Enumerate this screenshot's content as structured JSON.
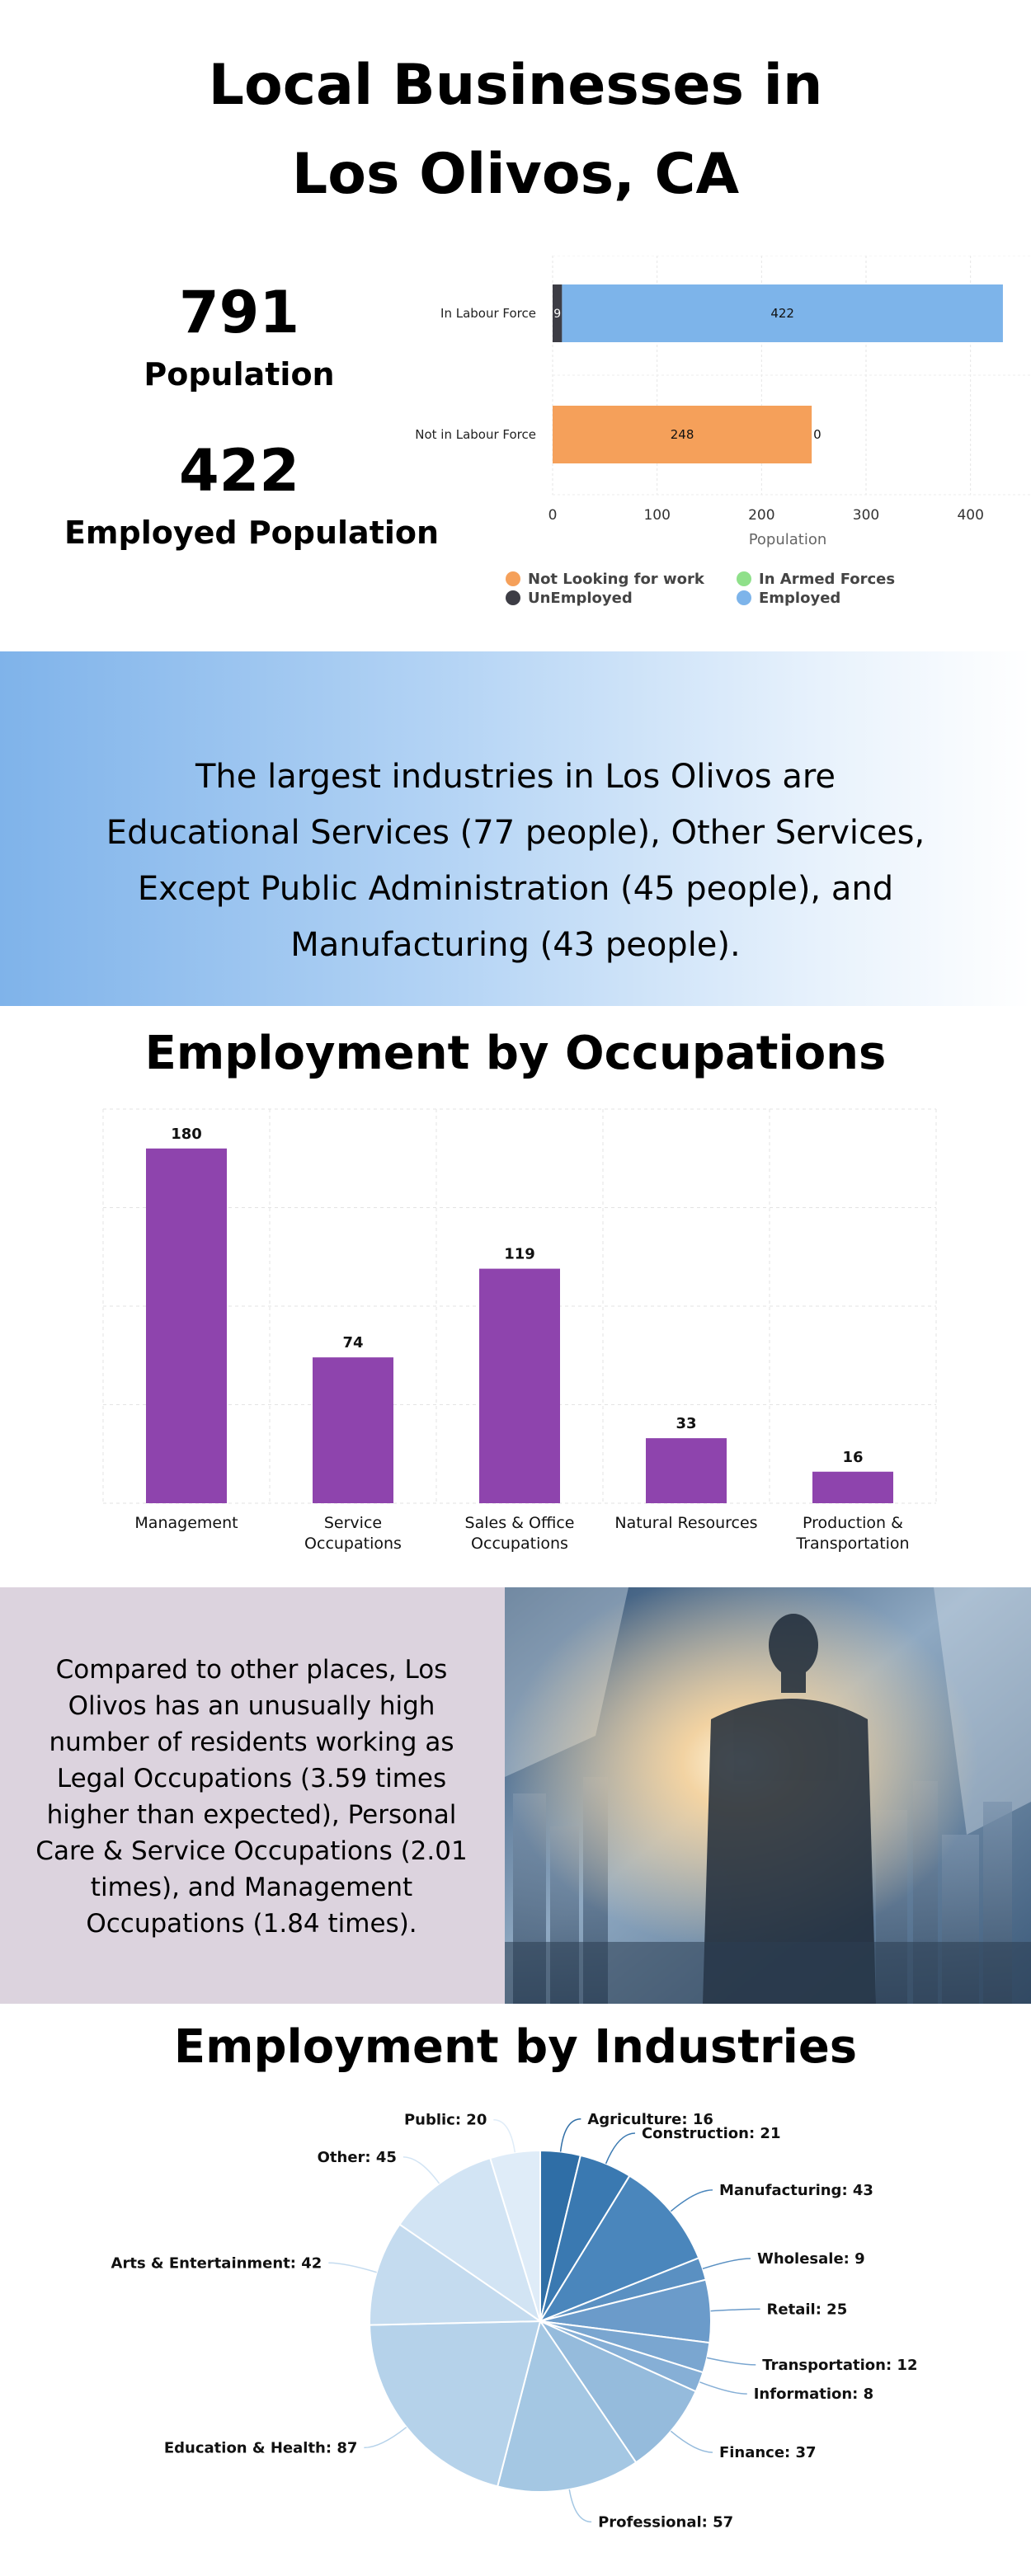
{
  "header": {
    "title_line1": "Local Businesses in",
    "title_line2": "Los Olivos, CA"
  },
  "stats": {
    "population_value": "791",
    "population_label": "Population",
    "employed_value": "422",
    "employed_label": "Employed Population"
  },
  "banner": {
    "text": "The largest industries in Los Olivos are Educational Services (77 people), Other Services, Except Public Administration (45 people), and Manufacturing (43 people)."
  },
  "occupations_section": {
    "title": "Employment by Occupations"
  },
  "compare": {
    "text": "Compared to other places, Los Olivos has an unusually high number of residents working as Legal Occupations (3.59 times higher than expected), Personal Care & Service Occupations (2.01 times), and Management Occupations (1.84 times)."
  },
  "industries_section": {
    "title": "Employment by Industries"
  },
  "photo": {
    "icon": "city-businessman-photo"
  },
  "colors": {
    "not_looking": "#f5a05a",
    "unemployed": "#3d3d45",
    "armed_forces": "#8fe08a",
    "employed": "#7db4ea",
    "occupation_bar": "#8e44ad",
    "banner_start": "#7fb3ea",
    "compare_bg": "#dcd3de"
  },
  "chart_data": [
    {
      "type": "bar",
      "orientation": "horizontal",
      "stacked": true,
      "categories": [
        "In Labour Force",
        "Not in Labour Force"
      ],
      "series": [
        {
          "name": "Not Looking for work",
          "values": [
            0,
            248
          ]
        },
        {
          "name": "UnEmployed",
          "values": [
            9,
            0
          ]
        },
        {
          "name": "In Armed Forces",
          "values": [
            0,
            0
          ]
        },
        {
          "name": "Employed",
          "values": [
            422,
            0
          ]
        }
      ],
      "data_labels": [
        [
          "9",
          "422"
        ],
        [
          "248",
          "0"
        ]
      ],
      "xlabel": "Population",
      "xticks": [
        0,
        100,
        200,
        300,
        400
      ],
      "xlim": [
        0,
        450
      ],
      "grid": true,
      "legend": "bottom"
    },
    {
      "type": "bar",
      "title": "Employment by Occupations",
      "categories": [
        [
          "Management"
        ],
        [
          "Service",
          "Occupations"
        ],
        [
          "Sales & Office",
          "Occupations"
        ],
        [
          "Natural Resources"
        ],
        [
          "Production &",
          "Transportation"
        ]
      ],
      "values": [
        180,
        74,
        119,
        33,
        16
      ],
      "ylim": [
        0,
        200
      ],
      "grid": true
    },
    {
      "type": "pie",
      "title": "Employment by Industries",
      "labels": [
        "Agriculture",
        "Construction",
        "Manufacturing",
        "Wholesale",
        "Retail",
        "Transportation",
        "Information",
        "Finance",
        "Professional",
        "Education & Health",
        "Arts & Entertainment",
        "Other",
        "Public"
      ],
      "values": [
        16,
        21,
        43,
        9,
        25,
        12,
        8,
        37,
        57,
        87,
        42,
        45,
        20
      ],
      "colors": [
        "#2f6ea6",
        "#3a79b1",
        "#4a86bc",
        "#5a90c2",
        "#6b9bca",
        "#7aa6d0",
        "#86afd6",
        "#95bbdc",
        "#a4c7e3",
        "#b5d2ea",
        "#c4dbef",
        "#d2e4f4",
        "#dfecf8"
      ]
    }
  ]
}
